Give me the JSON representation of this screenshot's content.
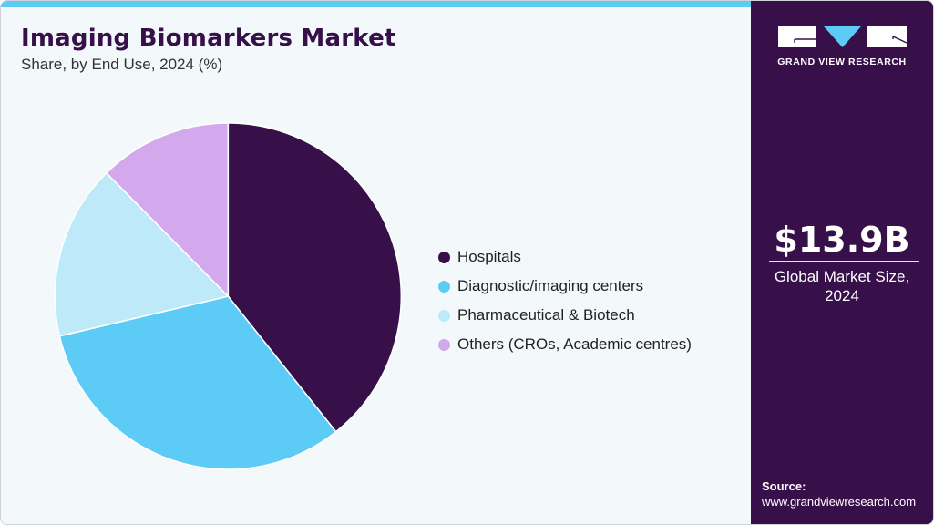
{
  "header": {
    "title": "Imaging Biomarkers Market",
    "subtitle": "Share, by End Use, 2024 (%)"
  },
  "brand": {
    "name": "GRAND VIEW RESEARCH",
    "colors": {
      "panel": "#37104a",
      "accent": "#5ccbf6"
    }
  },
  "highlight": {
    "value": "$13.9B",
    "caption_line1": "Global Market Size,",
    "caption_line2": "2024"
  },
  "source": {
    "label": "Source:",
    "url": "www.grandviewresearch.com"
  },
  "legend": [
    {
      "label": "Hospitals",
      "color": "#37104a"
    },
    {
      "label": "Diagnostic/imaging centers",
      "color": "#5ccbf6"
    },
    {
      "label": "Pharmaceutical & Biotech",
      "color": "#bde9f9"
    },
    {
      "label": "Others (CROs, Academic centres)",
      "color": "#d4a8ec"
    }
  ],
  "chart_data": {
    "type": "pie",
    "title": "Imaging Biomarkers Market",
    "subtitle": "Share, by End Use, 2024 (%)",
    "categories": [
      "Hospitals",
      "Diagnostic/imaging centers",
      "Pharmaceutical & Biotech",
      "Others (CROs, Academic centres)"
    ],
    "values": [
      39.3,
      32.0,
      16.3,
      12.4
    ],
    "colors": [
      "#37104a",
      "#5ccbf6",
      "#bde9f9",
      "#d4a8ec"
    ],
    "start_angle": "12 o'clock, clockwise",
    "legend_position": "right",
    "data_labels": false
  }
}
